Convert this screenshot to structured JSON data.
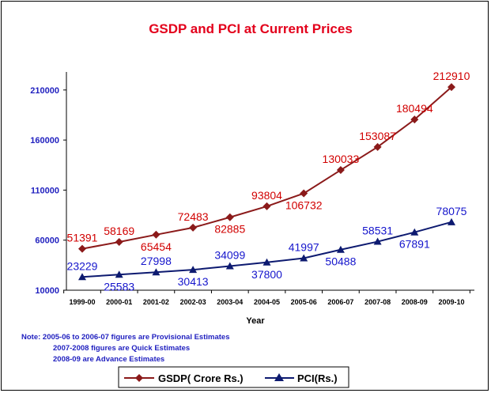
{
  "chart_data": {
    "type": "line",
    "title": "GSDP and PCI at Current  Prices",
    "xlabel": "Year",
    "ylabel": "",
    "categories": [
      "1999-00",
      "2000-01",
      "2001-02",
      "2002-03",
      "2003-04",
      "2004-05",
      "2005-06",
      "2006-07",
      "2007-08",
      "2008-09",
      "2009-10"
    ],
    "yticks": [
      "10000",
      "60000",
      "110000",
      "160000",
      "210000"
    ],
    "ylim": [
      10000,
      230000
    ],
    "grid": false,
    "legend": "bottom",
    "series": [
      {
        "name": "GSDP( Crore Rs.)",
        "marker": "diamond",
        "color": "#8b1a1a",
        "label_color": "#d10000",
        "values": [
          51391,
          58169,
          65454,
          72483,
          82885,
          93804,
          106732,
          130033,
          153087,
          180494,
          212910
        ],
        "labels": [
          "51391",
          "58169",
          "65454",
          "72483",
          "82885",
          "93804",
          "106732",
          "130033",
          "153087",
          "180494",
          "212910"
        ]
      },
      {
        "name": "PCI(Rs.)",
        "marker": "triangle",
        "color": "#0d1a70",
        "label_color": "#1515cc",
        "values": [
          23229,
          25583,
          27998,
          30413,
          34099,
          37800,
          41997,
          50488,
          58531,
          67891,
          78075
        ],
        "labels": [
          "23229",
          "25583",
          "27998",
          "30413",
          "34099",
          "37800",
          "41997",
          "50488",
          "58531",
          "67891",
          "78075"
        ]
      }
    ],
    "notes": [
      "Note:  2005-06 to 2006-07 figures are Provisional Estimates",
      "2007-2008 figures are Quick Estimates",
      "2008-09 are Advance Estimates"
    ]
  }
}
